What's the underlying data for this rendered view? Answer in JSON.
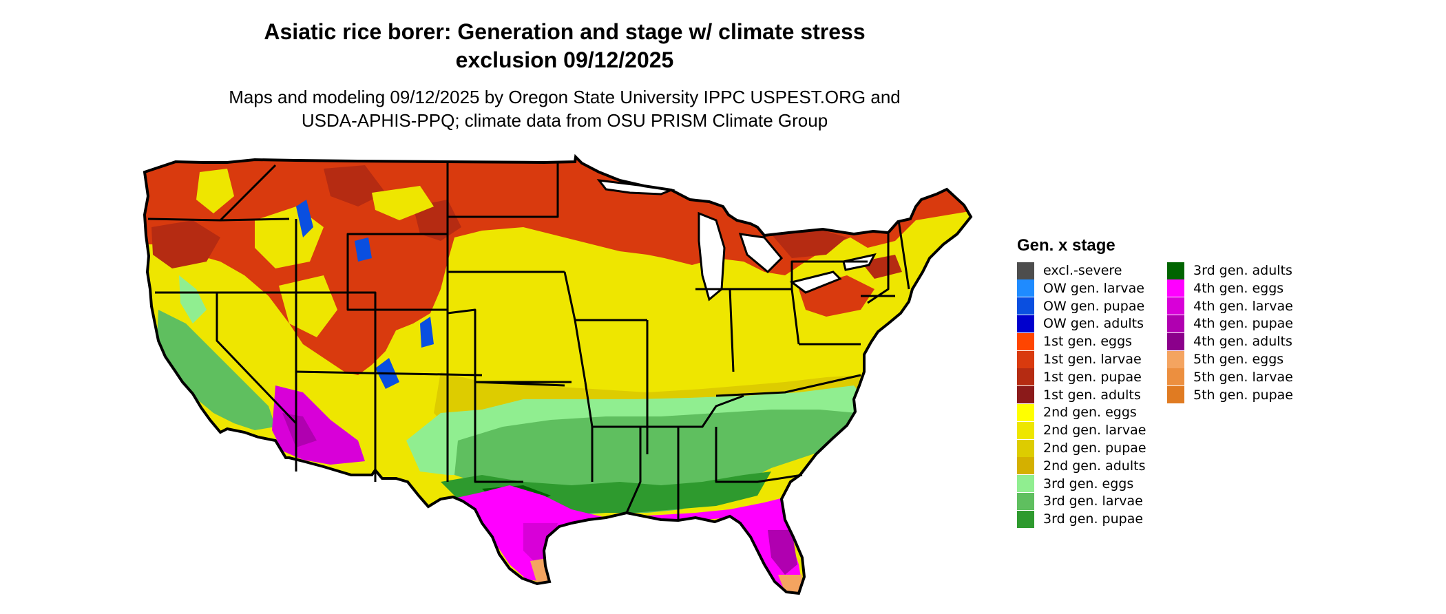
{
  "title_line1": "Asiatic rice borer: Generation and stage w/ climate stress",
  "title_line2": "exclusion 09/12/2025",
  "subtitle_line1": "Maps and modeling 09/12/2025 by Oregon State University IPPC USPEST.ORG and",
  "subtitle_line2": "USDA-APHIS-PPQ; climate data from OSU PRISM Climate Group",
  "legend": {
    "title": "Gen. x stage",
    "items": [
      {
        "label": "excl.-severe",
        "color": "#4d4d4d"
      },
      {
        "label": "OW gen. larvae",
        "color": "#1f8bff"
      },
      {
        "label": "OW gen. pupae",
        "color": "#0a4fe0"
      },
      {
        "label": "OW gen. adults",
        "color": "#0000cd"
      },
      {
        "label": "1st gen. eggs",
        "color": "#ff4500"
      },
      {
        "label": "1st gen. larvae",
        "color": "#d93a0e"
      },
      {
        "label": "1st gen. pupae",
        "color": "#b52b12"
      },
      {
        "label": "1st gen. adults",
        "color": "#8b1a1a"
      },
      {
        "label": "2nd gen. eggs",
        "color": "#ffff00"
      },
      {
        "label": "2nd gen. larvae",
        "color": "#eee600"
      },
      {
        "label": "2nd gen. pupae",
        "color": "#ddcc00"
      },
      {
        "label": "2nd gen. adults",
        "color": "#d4b000"
      },
      {
        "label": "3rd gen. eggs",
        "color": "#90ee90"
      },
      {
        "label": "3rd gen. larvae",
        "color": "#5fbf5f"
      },
      {
        "label": "3rd gen. pupae",
        "color": "#2e9a2e"
      },
      {
        "label": "3rd gen. adults",
        "color": "#006400"
      },
      {
        "label": "4th gen. eggs",
        "color": "#ff00ff"
      },
      {
        "label": "4th gen. larvae",
        "color": "#d800d8"
      },
      {
        "label": "4th gen. pupae",
        "color": "#b000b0"
      },
      {
        "label": "4th gen. adults",
        "color": "#8b008b"
      },
      {
        "label": "5th gen. eggs",
        "color": "#f4a460"
      },
      {
        "label": "5th gen. larvae",
        "color": "#ec8f3f"
      },
      {
        "label": "5th gen. pupae",
        "color": "#e07b22"
      }
    ]
  }
}
